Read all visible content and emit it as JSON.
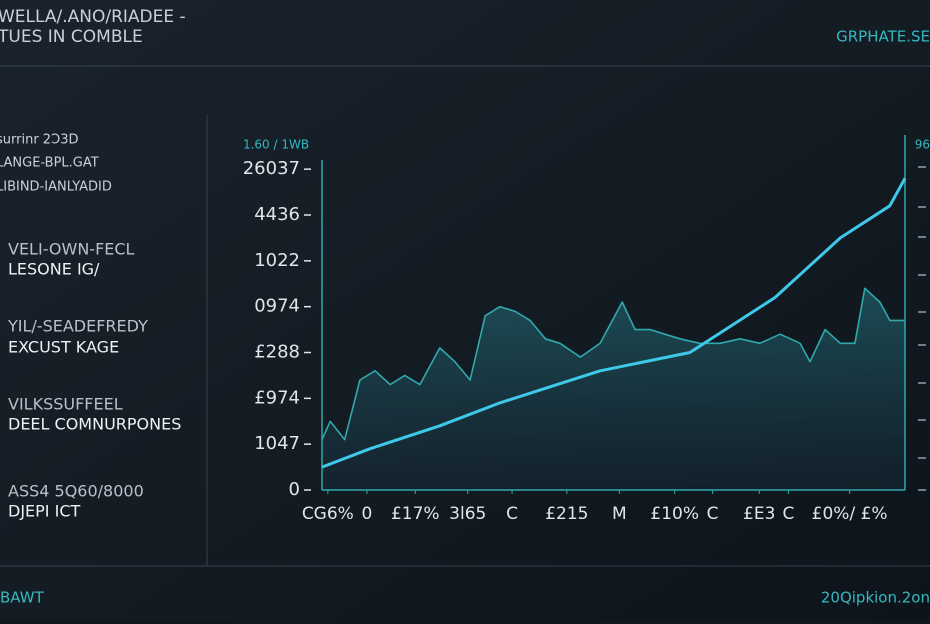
{
  "header": {
    "title": "WELLA/.ANO/RIADEE -",
    "subtitle": "TUES IN COMBLE",
    "brand": "GRPHATE.SE"
  },
  "sidebar": {
    "lines": [
      "surrinr 2Ɔ3D",
      "LANGE-BPL.GAT",
      "LIBIND-IANLYADID"
    ],
    "groups": [
      {
        "label": "VELI-OWN-FECL",
        "value": "LESONE IG/"
      },
      {
        "label": "YIL/-SEADEFREDY",
        "value": "EXCUST KAGE"
      },
      {
        "label": "VILKSSUFFEEL",
        "value": "DEEL COMNURPONES"
      },
      {
        "label": "ASS4 5Q60/8000",
        "value": "DJEPI ICT"
      }
    ]
  },
  "footer": {
    "left": "BAWT",
    "right": "20Qipkion.2on"
  },
  "chart_data": {
    "type": "line",
    "axis_label": "1.60 / 1WB",
    "y2_label": "96",
    "xlim": [
      0,
      100
    ],
    "ylim": [
      0,
      7.2
    ],
    "xticks": [
      {
        "value": 1,
        "label": "CG6%"
      },
      {
        "value": 7.7,
        "label": "0"
      },
      {
        "value": 16,
        "label": "£17%"
      },
      {
        "value": 25,
        "label": "3l65"
      },
      {
        "value": 32.6,
        "label": "C"
      },
      {
        "value": 42,
        "label": "£215"
      },
      {
        "value": 51,
        "label": "M"
      },
      {
        "value": 60.5,
        "label": "£10%"
      },
      {
        "value": 67,
        "label": "C"
      },
      {
        "value": 75,
        "label": "£E3"
      },
      {
        "value": 80,
        "label": "C"
      },
      {
        "value": 90.5,
        "label": "£0%/ £%"
      }
    ],
    "yticks": [
      0,
      {
        "value": 1,
        "label": "1047"
      },
      {
        "value": 2,
        "label": "£974"
      },
      {
        "value": 3,
        "label": "£288"
      },
      {
        "value": 4,
        "label": "0974"
      },
      {
        "value": 5,
        "label": "1022"
      },
      {
        "value": 6,
        "label": "4436"
      },
      {
        "value": 7,
        "label": "26037"
      }
    ],
    "series": [
      {
        "color": "#2fa9ad",
        "area": true,
        "x": [
          0,
          1.4,
          3.9,
          6.5,
          9.1,
          11.7,
          14.2,
          16.8,
          20.2,
          22.8,
          25.4,
          28,
          30.5,
          33.1,
          35.7,
          38.3,
          40.8,
          44.3,
          47.7,
          51.5,
          53.7,
          56.3,
          58.8,
          61.4,
          64.8,
          68.3,
          71.7,
          75.1,
          78.6,
          82,
          83.7,
          86.3,
          88.9,
          91.4,
          93.1,
          95.7,
          97.4,
          100
        ],
        "values": [
          1.1,
          1.5,
          1.1,
          2.4,
          2.6,
          2.3,
          2.5,
          2.3,
          3.1,
          2.8,
          2.4,
          3.8,
          4.0,
          3.9,
          3.7,
          3.3,
          3.2,
          2.9,
          3.2,
          4.1,
          3.5,
          3.5,
          3.4,
          3.3,
          3.2,
          3.2,
          3.3,
          3.2,
          3.4,
          3.2,
          2.8,
          3.5,
          3.2,
          3.2,
          4.4,
          4.1,
          3.7,
          3.7
        ]
      },
      {
        "color": "#3ec8ea",
        "area": false,
        "x": [
          0,
          8.2,
          20.2,
          30.5,
          47.7,
          63.1,
          77.7,
          88.9,
          97.4,
          100
        ],
        "values": [
          0.5,
          0.9,
          1.4,
          1.9,
          2.6,
          3.0,
          4.2,
          5.5,
          6.2,
          6.8
        ]
      }
    ]
  }
}
